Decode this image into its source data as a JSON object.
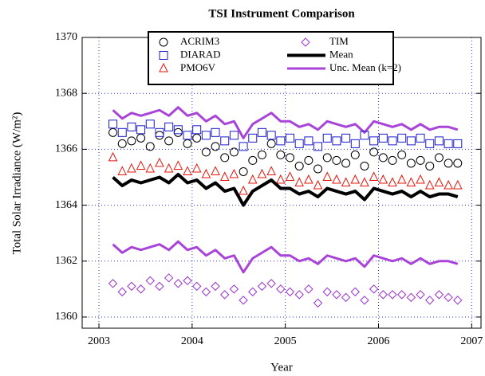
{
  "chart_data": {
    "type": "scatter",
    "title": "TSI Instrument Comparison",
    "xlabel": "Year",
    "ylabel": "Total Solar Irradiance (W/m²)",
    "x": [
      2003.15,
      2003.25,
      2003.35,
      2003.45,
      2003.55,
      2003.65,
      2003.75,
      2003.85,
      2003.95,
      2004.05,
      2004.15,
      2004.25,
      2004.35,
      2004.45,
      2004.55,
      2004.65,
      2004.75,
      2004.85,
      2004.95,
      2005.05,
      2005.15,
      2005.25,
      2005.35,
      2005.45,
      2005.55,
      2005.65,
      2005.75,
      2005.85,
      2005.95,
      2006.05,
      2006.15,
      2006.25,
      2006.35,
      2006.45,
      2006.55,
      2006.65,
      2006.75,
      2006.85
    ],
    "xlim": [
      2002.82,
      2007.1
    ],
    "xticks": [
      2003,
      2004,
      2005,
      2006,
      2007
    ],
    "ylim": [
      1359.6,
      1370
    ],
    "yticks": [
      1360,
      1362,
      1364,
      1366,
      1368,
      1370
    ],
    "grid": true,
    "series": [
      {
        "name": "ACRIM3",
        "color": "#000000",
        "marker": "circle",
        "values": [
          1366.6,
          1366.2,
          1366.3,
          1366.4,
          1366.1,
          1366.5,
          1366.3,
          1366.6,
          1366.2,
          1366.4,
          1365.9,
          1366.1,
          1365.7,
          1365.9,
          1365.2,
          1365.6,
          1365.8,
          1366.2,
          1365.8,
          1365.7,
          1365.4,
          1365.6,
          1365.3,
          1365.7,
          1365.6,
          1365.5,
          1365.8,
          1365.4,
          1365.9,
          1365.7,
          1365.6,
          1365.8,
          1365.5,
          1365.6,
          1365.4,
          1365.7,
          1365.5,
          1365.5
        ]
      },
      {
        "name": "DIARAD",
        "color": "#1a1acc",
        "marker": "square",
        "values": [
          1366.9,
          1366.6,
          1366.8,
          1366.7,
          1366.9,
          1366.6,
          1366.8,
          1366.7,
          1366.5,
          1366.7,
          1366.5,
          1366.6,
          1366.3,
          1366.5,
          1366.1,
          1366.4,
          1366.6,
          1366.5,
          1366.3,
          1366.4,
          1366.2,
          1366.3,
          1366.1,
          1366.4,
          1366.3,
          1366.4,
          1366.2,
          1366.5,
          1366.3,
          1366.4,
          1366.3,
          1366.4,
          1366.3,
          1366.4,
          1366.2,
          1366.3,
          1366.2,
          1366.2
        ]
      },
      {
        "name": "PMO6V",
        "color": "#e8140a",
        "marker": "triangle",
        "values": [
          1365.7,
          1365.2,
          1365.3,
          1365.4,
          1365.3,
          1365.5,
          1365.3,
          1365.4,
          1365.2,
          1365.3,
          1365.1,
          1365.2,
          1365.0,
          1365.1,
          1364.5,
          1364.9,
          1365.1,
          1365.2,
          1364.9,
          1365.0,
          1364.8,
          1364.9,
          1364.7,
          1365.0,
          1364.9,
          1364.8,
          1364.9,
          1364.8,
          1365.0,
          1364.9,
          1364.8,
          1364.9,
          1364.8,
          1364.9,
          1364.7,
          1364.8,
          1364.7,
          1364.7
        ]
      },
      {
        "name": "TIM",
        "color": "#9933cc",
        "marker": "diamond",
        "values": [
          1361.2,
          1360.9,
          1361.1,
          1361.0,
          1361.3,
          1361.1,
          1361.4,
          1361.2,
          1361.3,
          1361.1,
          1360.9,
          1361.1,
          1360.8,
          1361.0,
          1360.6,
          1360.9,
          1361.1,
          1361.2,
          1361.0,
          1360.9,
          1360.8,
          1361.0,
          1360.5,
          1360.9,
          1360.8,
          1360.7,
          1360.9,
          1360.6,
          1361.0,
          1360.8,
          1360.8,
          1360.8,
          1360.7,
          1360.8,
          1360.6,
          1360.8,
          1360.7,
          1360.6
        ]
      },
      {
        "name": "Mean",
        "color": "#000000",
        "marker": "line",
        "width": 4,
        "values": [
          1365.0,
          1364.7,
          1364.9,
          1364.8,
          1364.9,
          1365.0,
          1364.8,
          1365.1,
          1364.8,
          1364.9,
          1364.6,
          1364.8,
          1364.5,
          1364.6,
          1364.0,
          1364.5,
          1364.7,
          1364.9,
          1364.6,
          1364.6,
          1364.4,
          1364.5,
          1364.3,
          1364.6,
          1364.5,
          1364.4,
          1364.5,
          1364.2,
          1364.6,
          1364.5,
          1364.4,
          1364.5,
          1364.3,
          1364.5,
          1364.3,
          1364.4,
          1364.4,
          1364.3
        ]
      },
      {
        "name": "Unc. Mean (k=2)",
        "color": "#a844d8",
        "marker": "line",
        "width": 3,
        "values": [
          1367.4,
          1367.1,
          1367.3,
          1367.2,
          1367.3,
          1367.4,
          1367.2,
          1367.5,
          1367.2,
          1367.3,
          1367.0,
          1367.2,
          1366.9,
          1367.0,
          1366.4,
          1366.9,
          1367.1,
          1367.3,
          1367.0,
          1367.0,
          1366.8,
          1366.9,
          1366.7,
          1367.0,
          1366.9,
          1366.8,
          1366.9,
          1366.6,
          1367.0,
          1366.9,
          1366.8,
          1366.9,
          1366.7,
          1366.9,
          1366.7,
          1366.8,
          1366.8,
          1366.7
        ],
        "lower": [
          1362.6,
          1362.3,
          1362.5,
          1362.4,
          1362.5,
          1362.6,
          1362.4,
          1362.7,
          1362.4,
          1362.5,
          1362.2,
          1362.4,
          1362.1,
          1362.2,
          1361.6,
          1362.1,
          1362.3,
          1362.5,
          1362.2,
          1362.2,
          1362.0,
          1362.1,
          1361.9,
          1362.2,
          1362.1,
          1362.0,
          1362.1,
          1361.8,
          1362.2,
          1362.1,
          1362.0,
          1362.1,
          1361.9,
          1362.1,
          1361.9,
          1362.0,
          1362.0,
          1361.9
        ]
      }
    ]
  }
}
